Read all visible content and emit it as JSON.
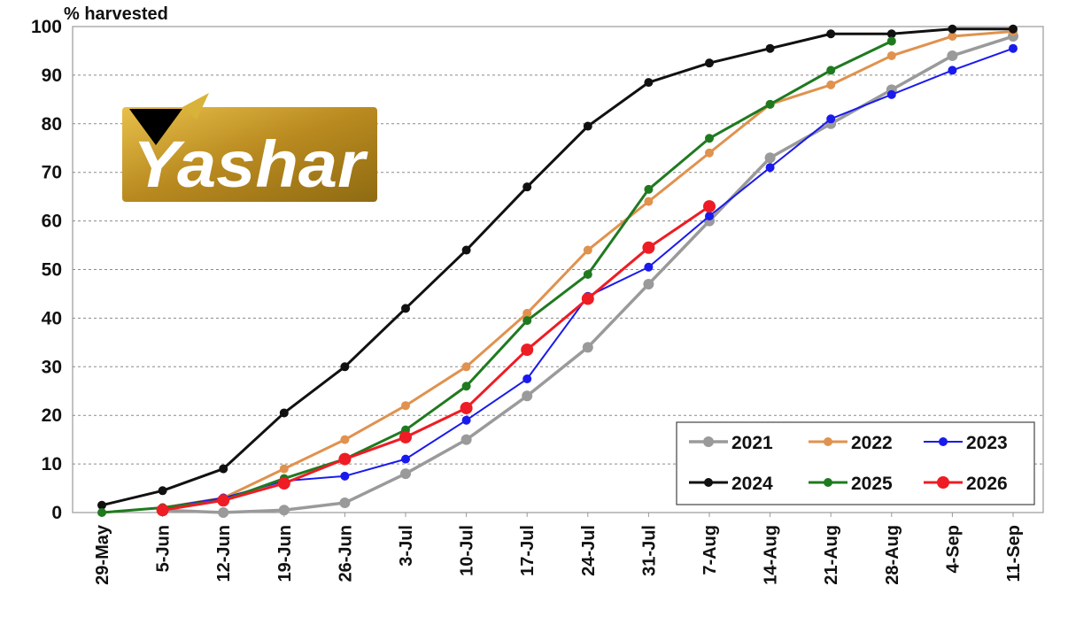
{
  "chart_data": {
    "type": "line",
    "ylabel": "% harvested",
    "xlabel": "",
    "title": "",
    "ylim": [
      0,
      100
    ],
    "yticks": [
      0,
      10,
      20,
      30,
      40,
      50,
      60,
      70,
      80,
      90,
      100
    ],
    "grid": "horizontal dashed",
    "legend_position": "bottom-right",
    "categories": [
      "29-May",
      "5-Jun",
      "12-Jun",
      "19-Jun",
      "26-Jun",
      "3-Jul",
      "10-Jul",
      "17-Jul",
      "24-Jul",
      "31-Jul",
      "7-Aug",
      "14-Aug",
      "21-Aug",
      "28-Aug",
      "4-Sep",
      "11-Sep"
    ],
    "series": [
      {
        "name": "2021",
        "color": "#9a9a9a",
        "values": [
          null,
          0.5,
          0,
          0.5,
          2,
          8,
          15,
          24,
          34,
          47,
          60,
          73,
          80,
          87,
          94,
          98
        ]
      },
      {
        "name": "2022",
        "color": "#e0924e",
        "values": [
          null,
          1,
          3,
          9,
          15,
          22,
          30,
          41,
          54,
          64,
          74,
          84,
          88,
          94,
          98,
          99
        ]
      },
      {
        "name": "2023",
        "color": "#1a1aee",
        "values": [
          null,
          1,
          3,
          6.5,
          7.5,
          11,
          19,
          27.5,
          44.5,
          50.5,
          61,
          71,
          81,
          86,
          91,
          95.5
        ]
      },
      {
        "name": "2024",
        "color": "#111111",
        "values": [
          1.5,
          4.5,
          9,
          20.5,
          30,
          42,
          54,
          67,
          79.5,
          88.5,
          92.5,
          95.5,
          98.5,
          98.5,
          99.5,
          99.5
        ]
      },
      {
        "name": "2025",
        "color": "#1f7a1f",
        "values": [
          0,
          1,
          2.5,
          7,
          11,
          17,
          26,
          39.5,
          49,
          66.5,
          77,
          84,
          91,
          97,
          null,
          null
        ]
      },
      {
        "name": "2026",
        "color": "#ee1c24",
        "values": [
          null,
          0.5,
          2.5,
          6,
          11,
          15.5,
          21.5,
          33.5,
          44,
          54.5,
          63,
          null,
          null,
          null,
          null,
          null
        ]
      }
    ]
  },
  "logo": {
    "text": "Yashar",
    "colors": {
      "gold_dark": "#8f6b12",
      "gold_light": "#e8c04a",
      "mark": "#000000"
    }
  }
}
